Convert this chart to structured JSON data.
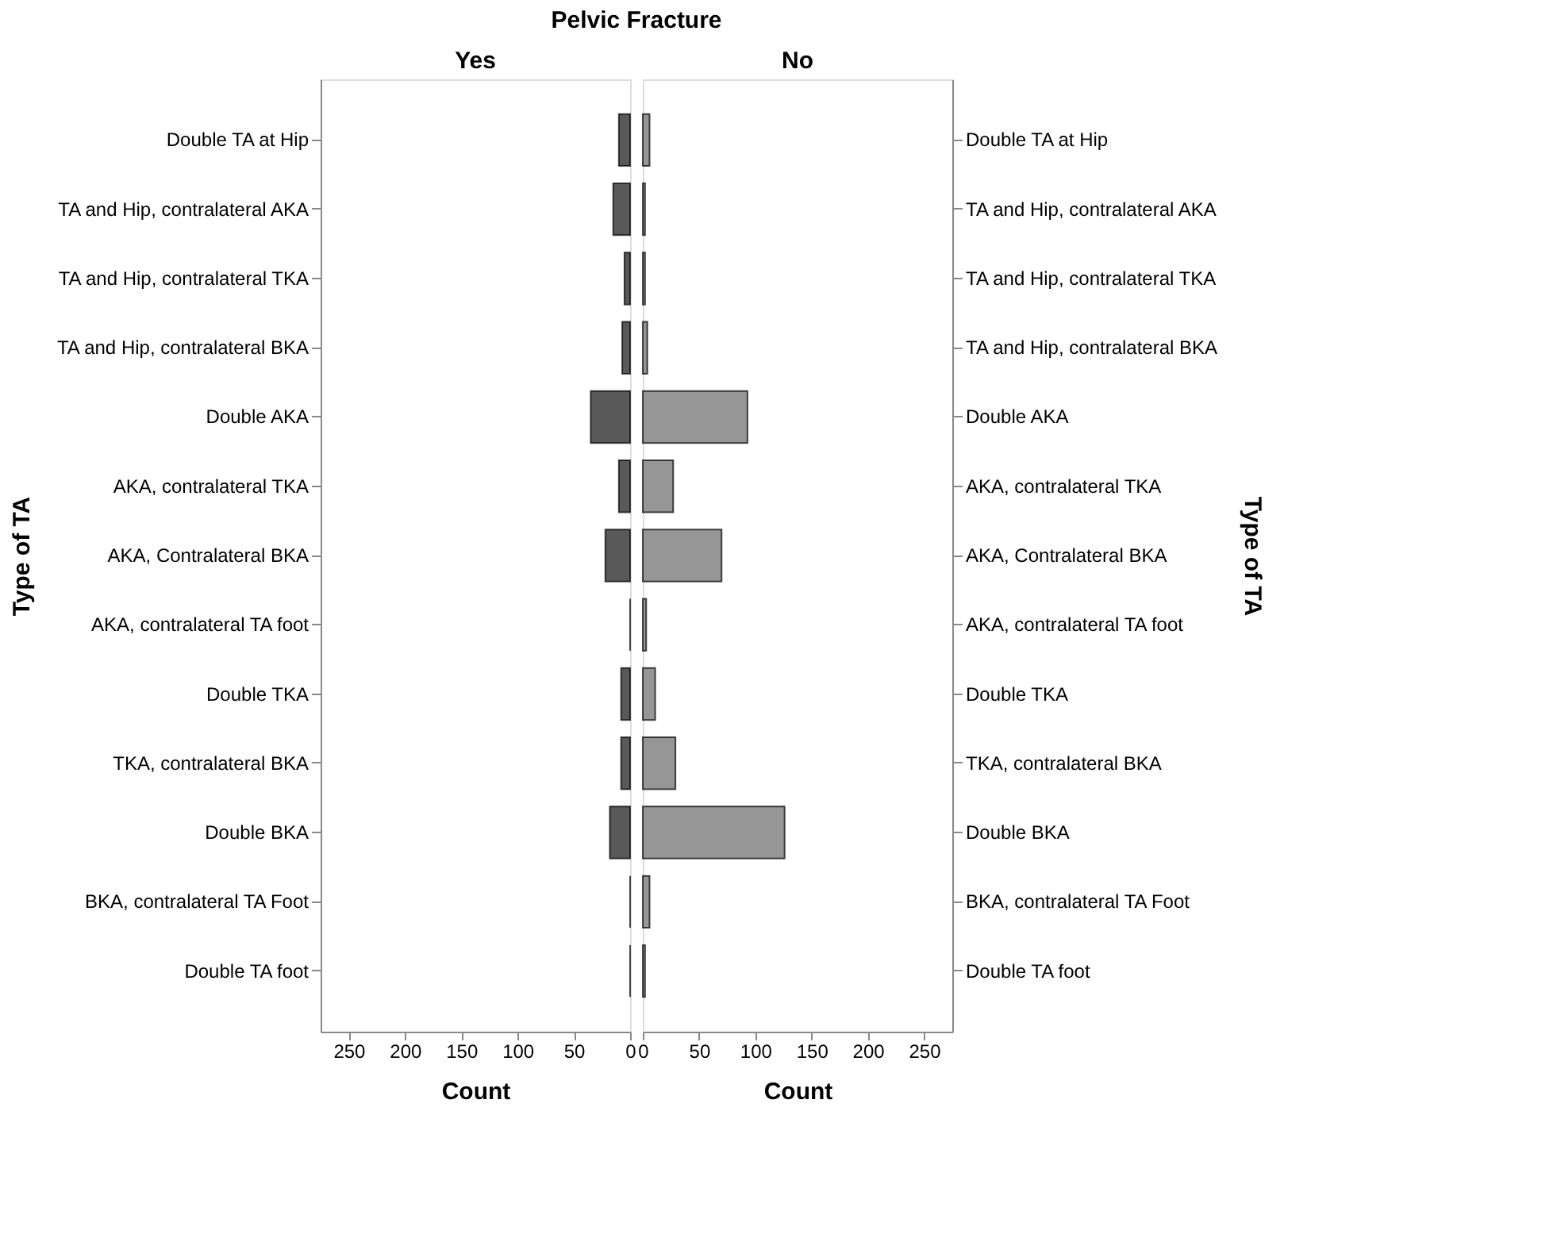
{
  "chart_data": [
    {
      "type": "bar",
      "orientation": "horizontal",
      "title": "Pelvic Fracture",
      "subtitle": "Yes",
      "xlabel": "Count",
      "ylabel": "Type of TA",
      "categories": [
        "Double TA at Hip",
        "TA and Hip, contralateral AKA",
        "TA and Hip, contralateral TKA",
        "TA and Hip, contralateral BKA",
        "Double AKA",
        "AKA, contralateral TKA",
        "AKA, Contralateral BKA",
        "AKA, contralateral TA foot",
        "Double TKA",
        "TKA, contralateral BKA",
        "Double BKA",
        "BKA, contralateral TA Foot",
        "Double TA foot"
      ],
      "values": [
        10,
        15,
        5,
        7,
        35,
        10,
        22,
        0,
        8,
        8,
        18,
        0,
        0
      ],
      "color": "#595959",
      "xlim": [
        275,
        0
      ],
      "xticks": [
        250,
        200,
        150,
        100,
        50,
        0
      ],
      "grid": false
    },
    {
      "type": "bar",
      "orientation": "horizontal",
      "subtitle": "No",
      "xlabel": "Count",
      "ylabel": "Type of TA",
      "categories": [
        "Double TA at Hip",
        "TA and Hip, contralateral AKA",
        "TA and Hip, contralateral TKA",
        "TA and Hip, contralateral BKA",
        "Double AKA",
        "AKA, contralateral TKA",
        "AKA, Contralateral BKA",
        "AKA, contralateral TA foot",
        "Double TKA",
        "TKA, contralateral BKA",
        "Double BKA",
        "BKA, contralateral TA Foot",
        "Double TA foot"
      ],
      "values": [
        6,
        2,
        2,
        4,
        93,
        27,
        70,
        3,
        11,
        29,
        126,
        6,
        2
      ],
      "color": "#969696",
      "xlim": [
        0,
        275
      ],
      "xticks": [
        0,
        50,
        100,
        150,
        200,
        250
      ],
      "grid": false
    }
  ]
}
